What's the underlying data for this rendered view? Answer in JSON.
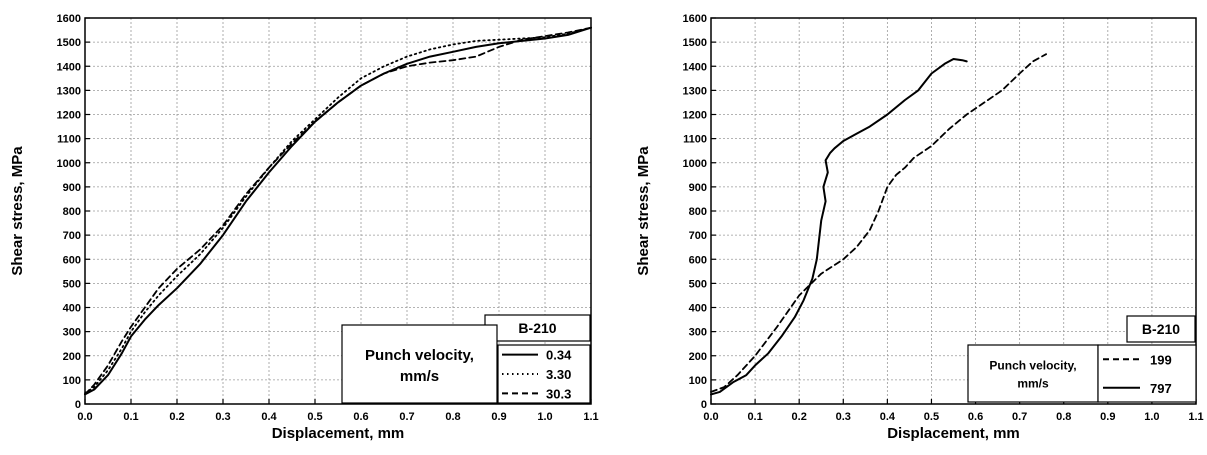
{
  "chart_data": [
    {
      "type": "line",
      "xlabel": "Displacement, mm",
      "ylabel": "Shear stress, MPa",
      "xlim": [
        0,
        1.1
      ],
      "ylim": [
        0,
        1600
      ],
      "xticks": [
        "0.0",
        "0.1",
        "0.2",
        "0.3",
        "0.4",
        "0.5",
        "0.6",
        "0.7",
        "0.8",
        "0.9",
        "1.0",
        "1.1"
      ],
      "yticks": [
        "0",
        "100",
        "200",
        "300",
        "400",
        "500",
        "600",
        "700",
        "800",
        "900",
        "1000",
        "1100",
        "1200",
        "1300",
        "1400",
        "1500",
        "1600"
      ],
      "grid": true,
      "legend": {
        "placement": "bottom-right",
        "material": "B-210",
        "title_line1": "Punch velocity,",
        "title_line2": "mm/s"
      },
      "series": [
        {
          "name": "0.34",
          "style": "solid",
          "x": [
            0.0,
            0.02,
            0.05,
            0.08,
            0.1,
            0.13,
            0.16,
            0.2,
            0.25,
            0.3,
            0.35,
            0.4,
            0.45,
            0.5,
            0.55,
            0.6,
            0.65,
            0.7,
            0.75,
            0.8,
            0.85,
            0.9,
            0.95,
            1.0,
            1.05,
            1.1
          ],
          "y": [
            40,
            60,
            120,
            210,
            280,
            350,
            410,
            480,
            580,
            700,
            840,
            960,
            1070,
            1170,
            1250,
            1320,
            1370,
            1410,
            1440,
            1460,
            1480,
            1495,
            1505,
            1515,
            1530,
            1560
          ]
        },
        {
          "name": "3.30",
          "style": "dotted",
          "x": [
            0.0,
            0.02,
            0.05,
            0.08,
            0.1,
            0.13,
            0.16,
            0.2,
            0.25,
            0.3,
            0.35,
            0.4,
            0.45,
            0.5,
            0.55,
            0.6,
            0.65,
            0.7,
            0.75,
            0.8,
            0.85,
            0.9,
            0.95,
            1.0,
            1.05,
            1.1
          ],
          "y": [
            45,
            70,
            140,
            230,
            300,
            380,
            450,
            530,
            620,
            730,
            860,
            980,
            1090,
            1180,
            1270,
            1350,
            1400,
            1440,
            1470,
            1490,
            1505,
            1510,
            1515,
            1520,
            1535,
            1560
          ]
        },
        {
          "name": "30.3",
          "style": "dashed",
          "x": [
            0.0,
            0.02,
            0.05,
            0.08,
            0.1,
            0.13,
            0.16,
            0.2,
            0.25,
            0.3,
            0.35,
            0.4,
            0.45,
            0.5,
            0.55,
            0.6,
            0.65,
            0.7,
            0.75,
            0.8,
            0.85,
            0.9,
            0.95,
            1.0,
            1.05,
            1.1
          ],
          "y": [
            40,
            80,
            160,
            260,
            320,
            400,
            480,
            560,
            640,
            740,
            870,
            980,
            1080,
            1170,
            1250,
            1320,
            1370,
            1400,
            1415,
            1425,
            1440,
            1480,
            1510,
            1525,
            1540,
            1560
          ]
        }
      ]
    },
    {
      "type": "line",
      "xlabel": "Displacement, mm",
      "ylabel": "Shear stress, MPa",
      "xlim": [
        0,
        1.1
      ],
      "ylim": [
        0,
        1600
      ],
      "xticks": [
        "0.0",
        "0.1",
        "0.2",
        "0.3",
        "0.4",
        "0.5",
        "0.6",
        "0.7",
        "0.8",
        "0.9",
        "1.0",
        "1.1"
      ],
      "yticks": [
        "0",
        "100",
        "200",
        "300",
        "400",
        "500",
        "600",
        "700",
        "800",
        "900",
        "1000",
        "1100",
        "1200",
        "1300",
        "1400",
        "1500",
        "1600"
      ],
      "grid": true,
      "legend": {
        "placement": "bottom-right",
        "material": "B-210",
        "title_line1": "Punch velocity,",
        "title_line2": "mm/s"
      },
      "series": [
        {
          "name": "199",
          "style": "dashed",
          "x": [
            0.0,
            0.03,
            0.06,
            0.1,
            0.15,
            0.2,
            0.25,
            0.3,
            0.33,
            0.36,
            0.38,
            0.4,
            0.42,
            0.44,
            0.46,
            0.5,
            0.54,
            0.58,
            0.62,
            0.66,
            0.7,
            0.73,
            0.76
          ],
          "y": [
            50,
            70,
            120,
            200,
            320,
            450,
            540,
            600,
            650,
            720,
            800,
            900,
            950,
            980,
            1020,
            1070,
            1140,
            1200,
            1250,
            1300,
            1370,
            1420,
            1450
          ]
        },
        {
          "name": "797",
          "style": "solid",
          "x": [
            0.0,
            0.02,
            0.05,
            0.08,
            0.1,
            0.13,
            0.16,
            0.19,
            0.21,
            0.23,
            0.24,
            0.245,
            0.25,
            0.26,
            0.255,
            0.265,
            0.26,
            0.27,
            0.28,
            0.3,
            0.33,
            0.36,
            0.4,
            0.44,
            0.47,
            0.5,
            0.53,
            0.55,
            0.57,
            0.58
          ],
          "y": [
            40,
            50,
            90,
            120,
            160,
            210,
            280,
            360,
            430,
            520,
            600,
            680,
            760,
            840,
            900,
            960,
            1010,
            1040,
            1060,
            1090,
            1120,
            1150,
            1200,
            1260,
            1300,
            1370,
            1410,
            1430,
            1425,
            1420
          ]
        }
      ]
    }
  ]
}
